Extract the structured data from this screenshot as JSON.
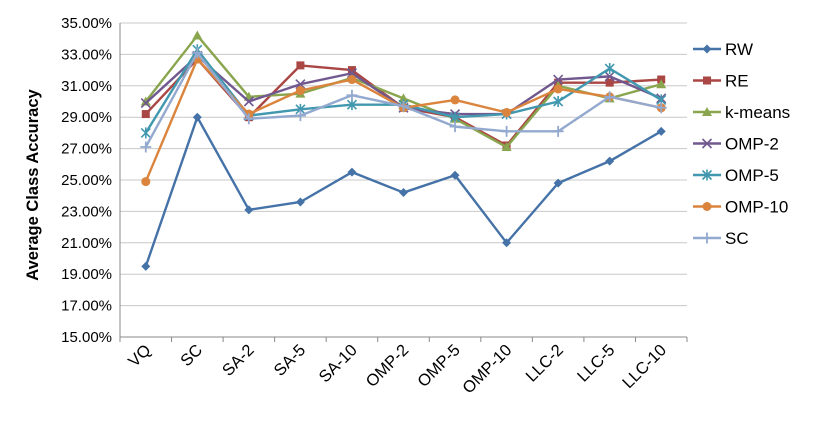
{
  "chart_data": {
    "type": "line",
    "title": "",
    "xlabel": "",
    "ylabel": "Average Class Accuracy",
    "categories": [
      "VQ",
      "SC",
      "SA-2",
      "SA-5",
      "SA-10",
      "OMP-2",
      "OMP-5",
      "OMP-10",
      "LLC-2",
      "LLC-5",
      "LLC-10"
    ],
    "ylim": [
      0.15,
      0.35
    ],
    "yticks": [
      "15.00%",
      "17.00%",
      "19.00%",
      "21.00%",
      "23.00%",
      "25.00%",
      "27.00%",
      "29.00%",
      "31.00%",
      "33.00%",
      "35.00%"
    ],
    "ytick_values": [
      0.15,
      0.17,
      0.19,
      0.21,
      0.23,
      0.25,
      0.27,
      0.29,
      0.31,
      0.33,
      0.35
    ],
    "grid": true,
    "legend_position": "right",
    "series": [
      {
        "name": "RW",
        "color": "#4572A7",
        "marker": "diamond",
        "values": [
          0.195,
          0.29,
          0.231,
          0.236,
          0.255,
          0.242,
          0.253,
          0.21,
          0.248,
          0.262,
          0.281
        ]
      },
      {
        "name": "RE",
        "color": "#AA4643",
        "marker": "square",
        "values": [
          0.292,
          0.327,
          0.29,
          0.323,
          0.32,
          0.296,
          0.29,
          0.272,
          0.312,
          0.312,
          0.314
        ]
      },
      {
        "name": "k-means",
        "color": "#89A54E",
        "marker": "triangle",
        "values": [
          0.3,
          0.342,
          0.303,
          0.305,
          0.315,
          0.302,
          0.289,
          0.271,
          0.31,
          0.302,
          0.311
        ]
      },
      {
        "name": "OMP-2",
        "color": "#71588F",
        "marker": "x",
        "values": [
          0.299,
          0.329,
          0.3,
          0.311,
          0.318,
          0.296,
          0.292,
          0.292,
          0.314,
          0.316,
          0.302
        ]
      },
      {
        "name": "OMP-5",
        "color": "#4198AF",
        "marker": "star",
        "values": [
          0.28,
          0.333,
          0.291,
          0.295,
          0.298,
          0.298,
          0.29,
          0.292,
          0.3,
          0.321,
          0.301
        ]
      },
      {
        "name": "OMP-10",
        "color": "#DB843D",
        "marker": "circle",
        "values": [
          0.249,
          0.327,
          0.292,
          0.307,
          0.314,
          0.296,
          0.301,
          0.293,
          0.308,
          0.303,
          0.296
        ]
      },
      {
        "name": "SC",
        "color": "#93A9CF",
        "marker": "plus",
        "values": [
          0.271,
          0.331,
          0.289,
          0.291,
          0.304,
          0.297,
          0.284,
          0.281,
          0.281,
          0.303,
          0.296
        ]
      }
    ]
  }
}
